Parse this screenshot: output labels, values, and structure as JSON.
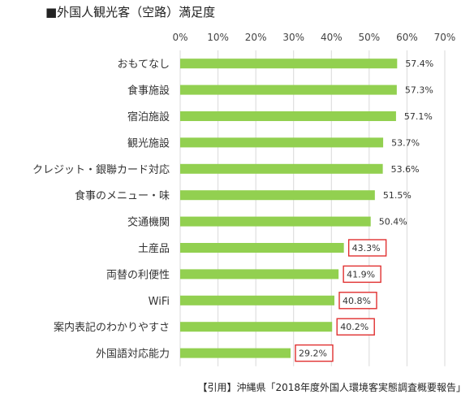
{
  "title": "■外国人観光客（空路）満足度",
  "citation": "【引用】沖縄県「2018年度外国人環境客実態調査概要報告」",
  "colors": {
    "bar": "#92D050",
    "highlight_box": "#E03030",
    "grid": "#D9D9D9"
  },
  "chart_data": {
    "type": "bar",
    "orientation": "horizontal",
    "title": "■外国人観光客（空路）満足度",
    "categories": [
      "おもてなし",
      "食事施設",
      "宿泊施設",
      "観光施設",
      "クレジット・銀聯カード対応",
      "食事のメニュー・味",
      "交通機関",
      "土産品",
      "両替の利便性",
      "WiFi",
      "案内表記のわかりやすさ",
      "外国語対応能力"
    ],
    "values": [
      57.4,
      57.3,
      57.1,
      53.7,
      53.6,
      51.5,
      50.4,
      43.3,
      41.9,
      40.8,
      40.2,
      29.2
    ],
    "value_labels": [
      "57.4%",
      "57.3%",
      "57.1%",
      "53.7%",
      "53.6%",
      "51.5%",
      "50.4%",
      "43.3%",
      "41.9%",
      "40.8%",
      "40.2%",
      "29.2%"
    ],
    "highlighted": [
      false,
      false,
      false,
      false,
      false,
      false,
      false,
      true,
      true,
      true,
      true,
      true
    ],
    "xlim": [
      0,
      70
    ],
    "xticks": [
      0,
      10,
      20,
      30,
      40,
      50,
      60,
      70
    ],
    "xtick_labels": [
      "0%",
      "10%",
      "20%",
      "30%",
      "40%",
      "50%",
      "60%",
      "70%"
    ],
    "x_axis_position": "top",
    "grid": true,
    "legend": "none"
  }
}
